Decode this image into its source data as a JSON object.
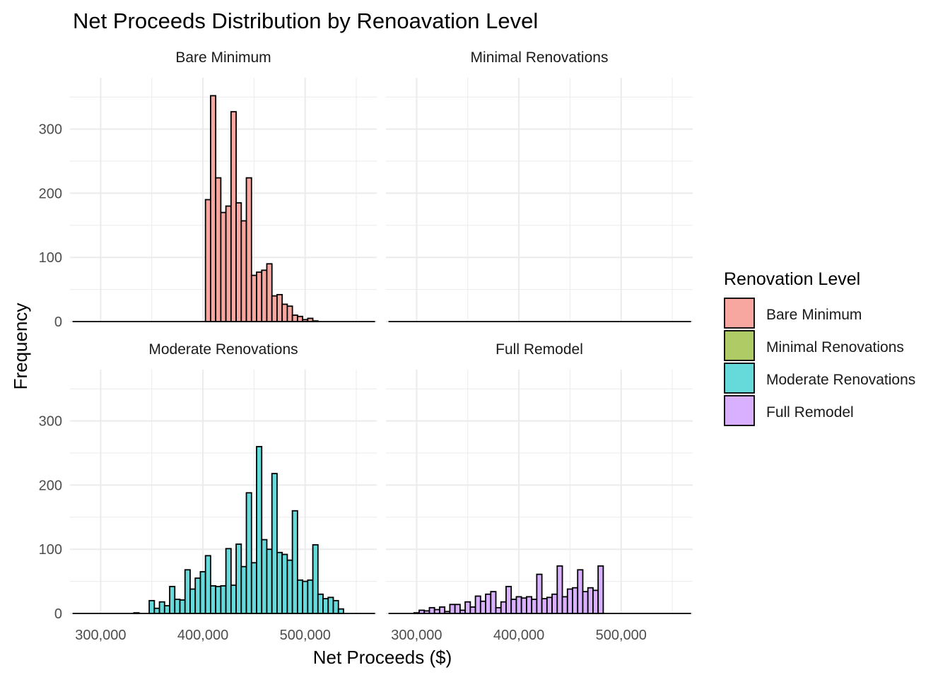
{
  "chart_data": {
    "type": "bar",
    "subtype": "faceted-histogram",
    "title": "Net Proceeds Distribution by Renoavation Level",
    "xlabel": "Net Proceeds ($)",
    "ylabel": "Frequency",
    "xlim": [
      270000,
      570000
    ],
    "ylim": [
      0,
      380
    ],
    "x_ticks": [
      300000,
      400000,
      500000
    ],
    "x_tick_labels": [
      "300,000",
      "400,000",
      "500,000"
    ],
    "y_ticks": [
      0,
      100,
      200,
      300
    ],
    "y_tick_labels": [
      "0",
      "100",
      "200",
      "300"
    ],
    "grid": true,
    "legend": {
      "title": "Renovation Level",
      "position": "right",
      "entries": [
        "Bare Minimum",
        "Minimal Renovations",
        "Moderate Renovations",
        "Full Remodel"
      ]
    },
    "bin_width": 5000,
    "bin_start": 272500,
    "facets": [
      {
        "name": "Bare Minimum",
        "color": "#f8a7a0",
        "values": [
          0,
          0,
          0,
          0,
          0,
          0,
          0,
          0,
          0,
          0,
          0,
          0,
          0,
          0,
          0,
          0,
          0,
          0,
          0,
          0,
          0,
          0,
          0,
          0,
          0,
          0,
          190,
          352,
          224,
          170,
          180,
          327,
          185,
          157,
          224,
          72,
          77,
          80,
          90,
          40,
          42,
          27,
          24,
          10,
          8,
          3,
          5,
          1,
          0,
          0,
          0,
          0,
          0,
          0,
          0,
          0,
          0,
          0,
          0,
          0
        ]
      },
      {
        "name": "Minimal Renovations",
        "color": "#afcb66",
        "values": [
          0,
          0,
          0,
          0,
          0,
          0,
          0,
          0,
          0,
          0,
          0,
          0,
          0,
          0,
          0,
          0,
          0,
          0,
          0,
          0,
          0,
          0,
          0,
          0,
          0,
          0,
          0,
          0,
          0,
          0,
          0,
          0,
          0,
          0,
          0,
          0,
          0,
          0,
          0,
          0,
          0,
          0,
          0,
          0,
          0,
          0,
          0,
          0,
          0,
          0,
          0,
          0,
          0,
          0,
          0,
          0,
          0,
          0,
          0,
          0
        ]
      },
      {
        "name": "Moderate Renovations",
        "color": "#66d9db",
        "values": [
          0,
          0,
          0,
          0,
          0,
          0,
          0,
          0,
          0,
          0,
          0,
          0,
          1,
          0,
          0,
          20,
          8,
          18,
          12,
          42,
          22,
          21,
          68,
          38,
          55,
          65,
          90,
          43,
          42,
          43,
          101,
          44,
          108,
          73,
          188,
          79,
          260,
          115,
          100,
          218,
          95,
          92,
          83,
          160,
          52,
          50,
          52,
          107,
          30,
          23,
          25,
          20,
          7,
          0,
          0,
          0,
          0,
          0,
          0,
          0
        ]
      },
      {
        "name": "Full Remodel",
        "color": "#d8b0ff",
        "values": [
          0,
          0,
          0,
          0,
          0,
          1,
          5,
          4,
          9,
          6,
          10,
          3,
          14,
          14,
          5,
          18,
          10,
          27,
          19,
          30,
          34,
          9,
          18,
          42,
          22,
          26,
          24,
          26,
          22,
          61,
          23,
          25,
          30,
          74,
          26,
          38,
          40,
          68,
          34,
          40,
          36,
          74,
          0,
          0,
          0,
          0,
          0,
          0,
          0,
          0,
          0,
          0,
          0,
          0,
          0,
          0,
          0,
          0,
          0,
          0
        ]
      }
    ]
  }
}
